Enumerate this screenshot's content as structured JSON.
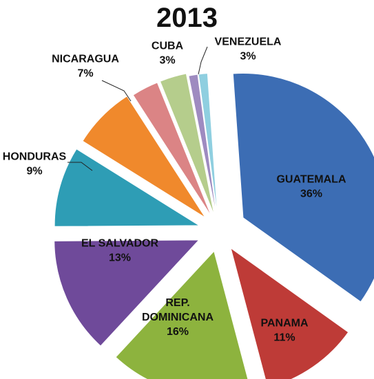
{
  "chart_data": {
    "type": "pie",
    "title": "2013",
    "exploded": true,
    "slices": [
      {
        "label": "GUATEMALA",
        "value": 36,
        "value_label": "36%",
        "color": "#3C6DB4"
      },
      {
        "label": "PANAMA",
        "value": 11,
        "value_label": "11%",
        "color": "#BE3B37"
      },
      {
        "label": "REP. DOMINICANA",
        "value": 16,
        "value_label": "16%",
        "color": "#8DB33E"
      },
      {
        "label": "EL SALVADOR",
        "value": 13,
        "value_label": "13%",
        "color": "#6F4A9A"
      },
      {
        "label": "HONDURAS",
        "value": 9,
        "value_label": "9%",
        "color": "#2E9DB5"
      },
      {
        "label": "NICARAGUA",
        "value": 7,
        "value_label": "7%",
        "color": "#F0892C"
      },
      {
        "label": "CUBA",
        "value": 3,
        "value_label": "3%",
        "color": "#DB8485"
      },
      {
        "label": "VENEZUELA",
        "value": 3,
        "value_label": "3%",
        "color": "#B5CD8C"
      },
      {
        "label": "",
        "value": 1,
        "value_label": "",
        "color": "#9E8BC0"
      },
      {
        "label": "",
        "value": 1,
        "value_label": "",
        "color": "#8FCFE0"
      }
    ]
  }
}
